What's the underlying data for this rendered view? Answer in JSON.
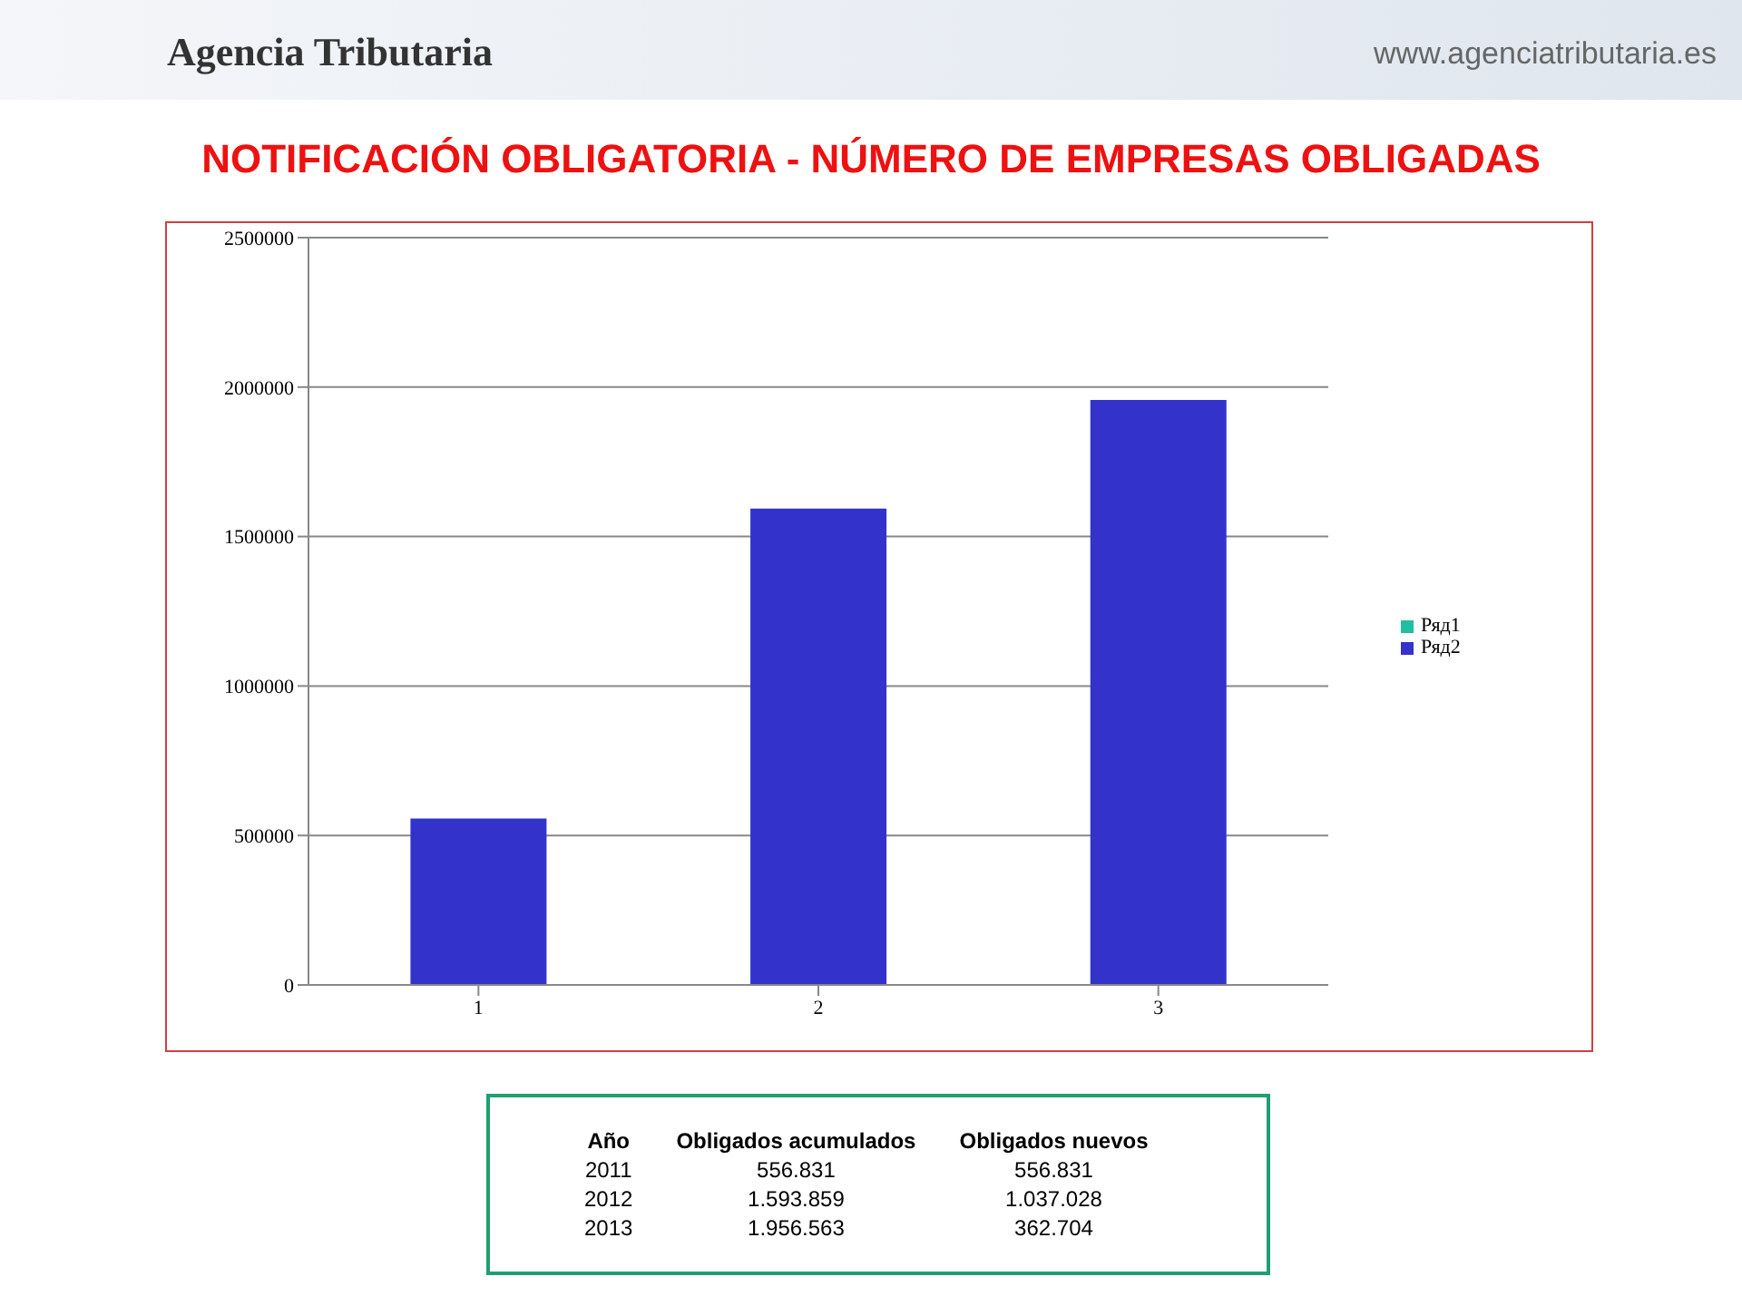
{
  "chart_data": {
    "type": "bar",
    "title": "NOTIFICACIÓN OBLIGATORIA - NÚMERO DE EMPRESAS OBLIGADAS",
    "categories": [
      "1",
      "2",
      "3"
    ],
    "series": [
      {
        "name": "Ряд2",
        "color": "#3333cc",
        "values": [
          556831,
          1593859,
          1956563
        ]
      },
      {
        "name": "Ряд1",
        "color": "#1fbf9f",
        "values": [
          null,
          null,
          null
        ]
      }
    ],
    "stacked": true,
    "ylim": [
      0,
      2500000
    ],
    "yticks": [
      0,
      500000,
      1000000,
      1500000,
      2000000,
      2500000
    ],
    "grid": "y",
    "legend": "right",
    "annotations": [
      "Agencia Tributaria",
      "www.agenciatributaria.es",
      "Año",
      "Obligados acumulados",
      "Obligados nuevos",
      "2011",
      "556.831",
      "556.831",
      "2012",
      "1.593.859",
      "1.037.028",
      "2013",
      "1.956.563",
      "362.704"
    ]
  }
}
